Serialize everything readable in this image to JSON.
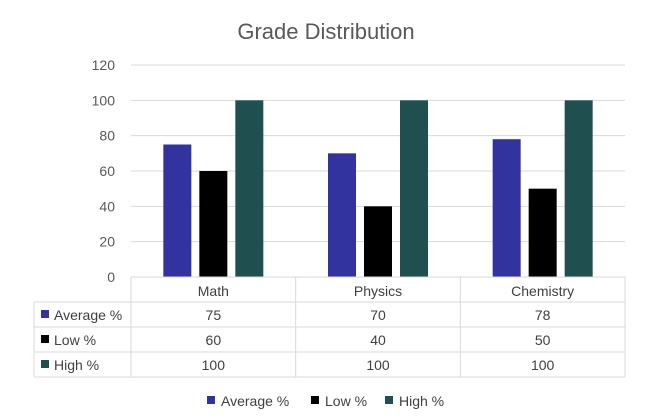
{
  "chart_data": {
    "type": "bar",
    "title": "Grade Distribution",
    "categories": [
      "Math",
      "Physics",
      "Chemistry"
    ],
    "series": [
      {
        "name": "Average %",
        "values": [
          75,
          70,
          78
        ],
        "color": "#3333a0"
      },
      {
        "name": "Low %",
        "values": [
          60,
          40,
          50
        ],
        "color": "#000000"
      },
      {
        "name": "High %",
        "values": [
          100,
          100,
          100
        ],
        "color": "#204f4f"
      }
    ],
    "ylim": [
      0,
      120
    ],
    "yticks": [
      0,
      20,
      40,
      60,
      80,
      100,
      120
    ],
    "grid": true,
    "legend_position": "bottom",
    "data_table": true,
    "colors": {
      "grid": "#d9d9d9",
      "text": "#595959"
    }
  }
}
